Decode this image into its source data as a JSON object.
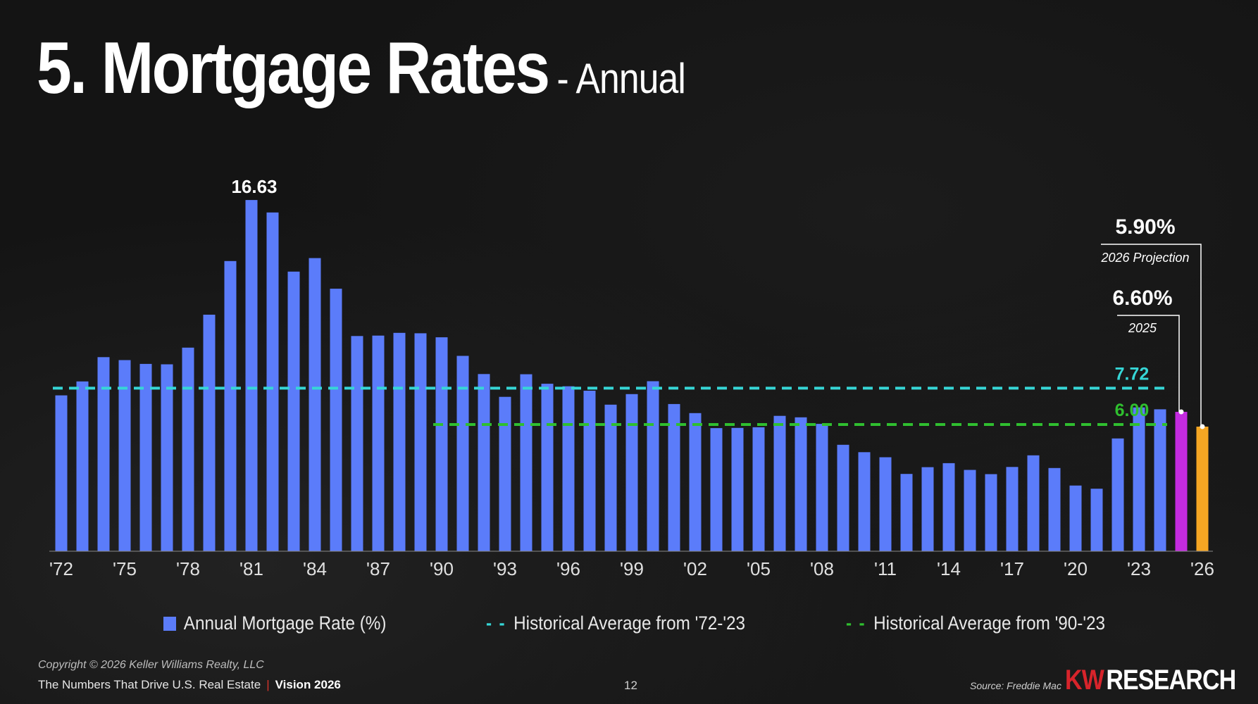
{
  "title": {
    "main": "5. Mortgage Rates",
    "sub": "- Annual"
  },
  "chart_data": {
    "type": "bar",
    "title": "5. Mortgage Rates - Annual",
    "xlabel": "",
    "ylabel": "Annual Mortgage Rate (%)",
    "ylim": [
      0,
      17.5
    ],
    "grid": false,
    "legend_position": "bottom",
    "categories": [
      "1972",
      "1973",
      "1974",
      "1975",
      "1976",
      "1977",
      "1978",
      "1979",
      "1980",
      "1981",
      "1982",
      "1983",
      "1984",
      "1985",
      "1986",
      "1987",
      "1988",
      "1989",
      "1990",
      "1991",
      "1992",
      "1993",
      "1994",
      "1995",
      "1996",
      "1997",
      "1998",
      "1999",
      "2000",
      "2001",
      "2002",
      "2003",
      "2004",
      "2005",
      "2006",
      "2007",
      "2008",
      "2009",
      "2010",
      "2011",
      "2012",
      "2013",
      "2014",
      "2015",
      "2016",
      "2017",
      "2018",
      "2019",
      "2020",
      "2021",
      "2022",
      "2023",
      "2024",
      "2025",
      "2026"
    ],
    "series": [
      {
        "name": "Annual Mortgage Rate (%)",
        "color": "#5b7cfa",
        "values": [
          7.38,
          8.04,
          9.19,
          9.05,
          8.87,
          8.85,
          9.64,
          11.2,
          13.74,
          16.63,
          16.04,
          13.24,
          13.88,
          12.43,
          10.19,
          10.21,
          10.34,
          10.32,
          10.13,
          9.25,
          8.39,
          7.31,
          8.38,
          7.93,
          7.81,
          7.6,
          6.94,
          7.44,
          8.05,
          6.97,
          6.54,
          5.83,
          5.84,
          5.87,
          6.41,
          6.34,
          6.03,
          5.04,
          4.69,
          4.45,
          3.66,
          3.98,
          4.17,
          3.85,
          3.65,
          3.99,
          4.54,
          3.94,
          3.11,
          2.96,
          5.34,
          6.81,
          6.72,
          6.6,
          5.9
        ]
      }
    ],
    "highlight_colors": {
      "2025": "#c42bdf",
      "2026": "#f5a623"
    },
    "tick_labels": [
      "'72",
      "'75",
      "'78",
      "'81",
      "'84",
      "'87",
      "'90",
      "'93",
      "'96",
      "'99",
      "'02",
      "'05",
      "'08",
      "'11",
      "'14",
      "'17",
      "'20",
      "'23",
      "'26"
    ],
    "peak_label": "16.63",
    "reference_lines": [
      {
        "name": "Historical Average from '72-'23",
        "value": 7.72,
        "label": "7.72",
        "color": "#36d6d6",
        "from": "1972"
      },
      {
        "name": "Historical Average from '90-'23",
        "value": 6.0,
        "label": "6.00",
        "color": "#2fbf2f",
        "from": "1990"
      }
    ],
    "annotations": [
      {
        "year": "2026",
        "value": "5.90%",
        "caption": "2026 Projection"
      },
      {
        "year": "2025",
        "value": "6.60%",
        "caption": "2025"
      }
    ]
  },
  "legend": {
    "bars": "Annual Mortgage Rate (%)",
    "avg_all": "Historical Average from '72-'23",
    "avg_90": "Historical Average from '90-'23",
    "dash": "- -"
  },
  "footer": {
    "copyright": "Copyright © 2026 Keller Williams Realty, LLC",
    "tagline": "The Numbers That Drive U.S. Real Estate",
    "separator": "|",
    "vision": "Vision 2026",
    "page": "12",
    "source": "Source: Freddie Mac",
    "logo_kw": "KW",
    "logo_research": "RESEARCH"
  }
}
